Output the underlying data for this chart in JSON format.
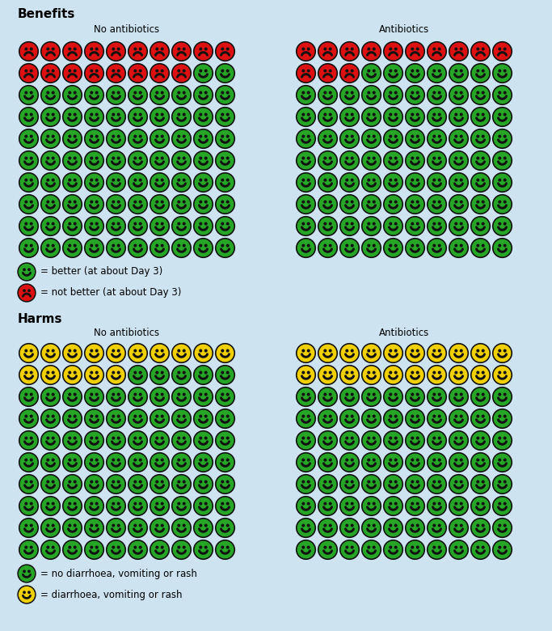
{
  "background_color": "#cde3f0",
  "title_benefits": "Benefits",
  "title_harms": "Harms",
  "label_no_antibiotics": "No antibiotics",
  "label_antibiotics": "Antibiotics",
  "grid_cols": 10,
  "grid_rows": 10,
  "benefits_no_ab_red": 18,
  "benefits_ab_red": 13,
  "harms_no_ab_yellow": 15,
  "harms_ab_yellow": 20,
  "color_green": "#26a526",
  "color_red": "#dd1111",
  "color_yellow": "#f0d000",
  "color_dark": "#111111",
  "legend_green_benefits": "= better (at about Day 3)",
  "legend_red_benefits": "= not better (at about Day 3)",
  "legend_green_harms": "= no diarrhoea, vomiting or rash",
  "legend_yellow_harms": "= diarrhoea, vomiting or rash"
}
